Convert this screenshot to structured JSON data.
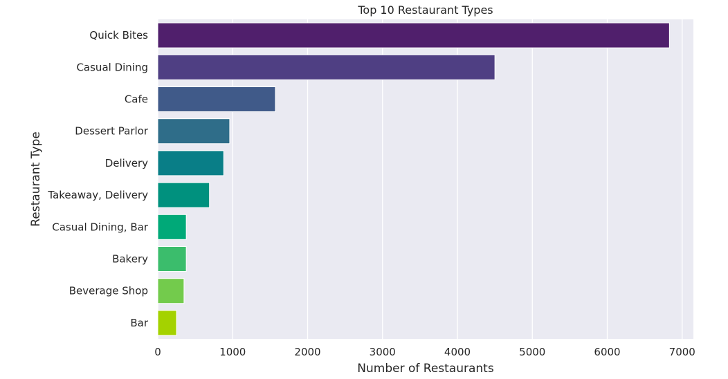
{
  "chart_data": {
    "type": "bar",
    "orientation": "horizontal",
    "title": "Top 10 Restaurant Types",
    "xlabel": "Number of Restaurants",
    "ylabel": "Restaurant Type",
    "categories": [
      "Quick Bites",
      "Casual Dining",
      "Cafe",
      "Dessert Parlor",
      "Delivery",
      "Takeaway, Delivery",
      "Casual Dining, Bar",
      "Bakery",
      "Beverage Shop",
      "Bar"
    ],
    "values": [
      6830,
      4500,
      1570,
      960,
      880,
      690,
      380,
      380,
      350,
      250
    ],
    "colors": [
      "#501f6c",
      "#4f3f83",
      "#405a89",
      "#2f6d89",
      "#097e87",
      "#00917e",
      "#00a978",
      "#3bbd6c",
      "#73cb4c",
      "#a4d200"
    ],
    "xlim": [
      0,
      7150
    ],
    "xticks": [
      0,
      1000,
      2000,
      3000,
      4000,
      5000,
      6000,
      7000
    ],
    "xtick_labels": [
      "0",
      "1000",
      "2000",
      "3000",
      "4000",
      "5000",
      "6000",
      "7000"
    ],
    "grid": true,
    "background": "#eaeaf2"
  }
}
